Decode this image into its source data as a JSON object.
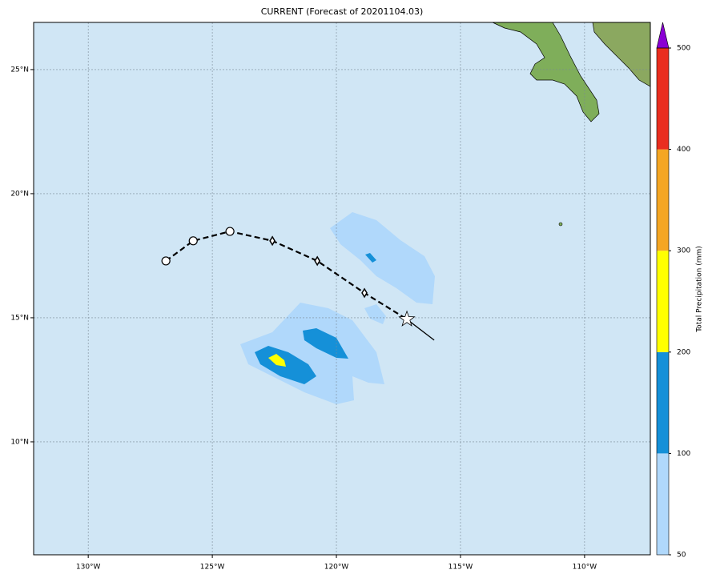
{
  "title": "CURRENT (Forecast of 20201104.03)",
  "map": {
    "lonlim": [
      -132.2,
      -107.35
    ],
    "latlim": [
      5.45,
      26.9
    ],
    "xticks": [
      {
        "value": -130,
        "label": "130°W"
      },
      {
        "value": -125,
        "label": "125°W"
      },
      {
        "value": -120,
        "label": "120°W"
      },
      {
        "value": -115,
        "label": "115°W"
      },
      {
        "value": -110,
        "label": "110°W"
      }
    ],
    "yticks": [
      {
        "value": 10,
        "label": "10°N"
      },
      {
        "value": 15,
        "label": "15°N"
      },
      {
        "value": 20,
        "label": "20°N"
      },
      {
        "value": 25,
        "label": "25°N"
      }
    ],
    "grid": true
  },
  "colorbar": {
    "label": "Total Precipitation (mm)",
    "levels": [
      50,
      100,
      200,
      300,
      400,
      500
    ],
    "colors": [
      "#b0d8fb",
      "#1590d8",
      "#ffff00",
      "#f5a623",
      "#ea2e1f"
    ],
    "extend_color": "#8a00d4"
  },
  "track": {
    "lon": [
      -126.87,
      -125.77,
      -124.29,
      -122.58,
      -120.77,
      -118.87,
      -117.16,
      -116.06
    ],
    "lat": [
      17.29,
      18.1,
      18.48,
      18.1,
      17.29,
      16.0,
      14.94,
      14.1
    ],
    "markers": [
      "circle",
      "circle",
      "circle",
      "diamond",
      "diamond",
      "diamond",
      "star",
      "none"
    ]
  }
}
